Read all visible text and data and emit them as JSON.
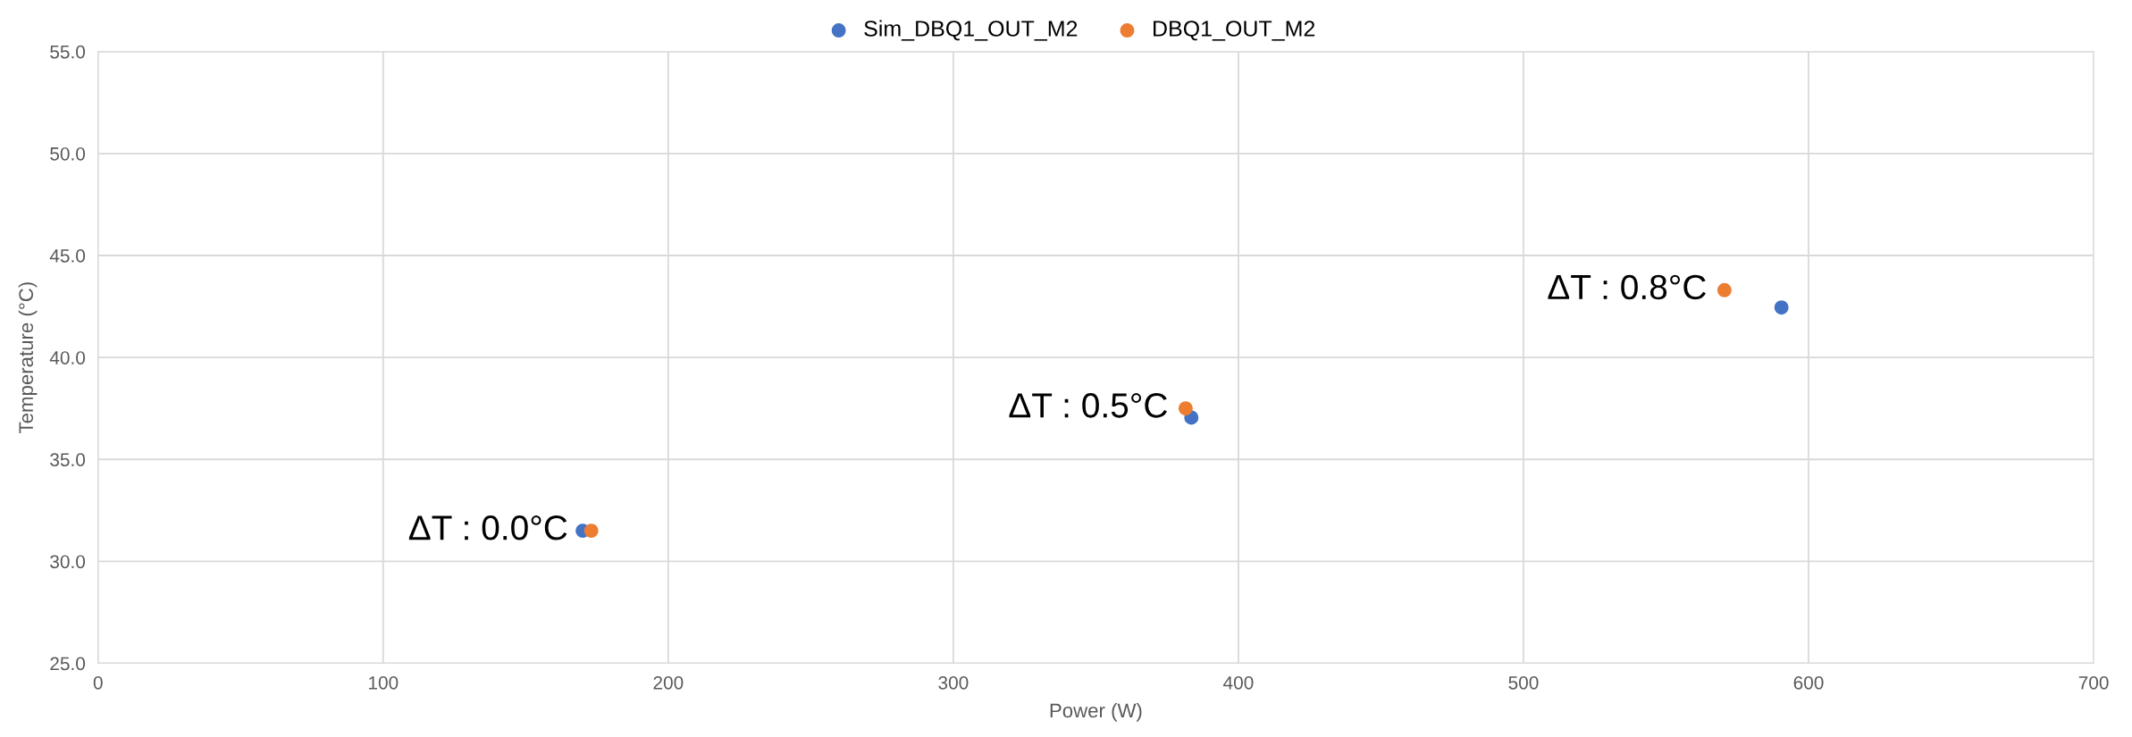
{
  "chart_data": {
    "type": "scatter",
    "xlabel": "Power (W)",
    "ylabel": "Temperature (°C)",
    "series": [
      {
        "name": "Sim_DBQ1_OUT_M2",
        "color": "#4472c4",
        "x": [
          170,
          383.5,
          590.5
        ],
        "values": [
          31.5,
          37.05,
          42.45
        ]
      },
      {
        "name": "DBQ1_OUT_M2",
        "color": "#ed7d31",
        "x": [
          173,
          381.5,
          570.5
        ],
        "values": [
          31.5,
          37.5,
          43.3
        ]
      }
    ],
    "xlim": [
      0,
      700
    ],
    "xticks": [
      0,
      100,
      200,
      300,
      400,
      500,
      600,
      700
    ],
    "ylim": [
      25,
      55
    ],
    "yticks": [
      {
        "value": 25,
        "label": "25.0"
      },
      {
        "value": 30,
        "label": "30.0"
      },
      {
        "value": 35,
        "label": "35.0"
      },
      {
        "value": 40,
        "label": "40.0"
      },
      {
        "value": 45,
        "label": "45.0"
      },
      {
        "value": 50,
        "label": "50.0"
      },
      {
        "value": 55,
        "label": "55.0"
      }
    ],
    "annotations": [
      {
        "text": "ΔT : 0.0°C",
        "x": 171,
        "y": 31.5
      },
      {
        "text": "ΔT : 0.5°C",
        "x": 381.5,
        "y": 37.5
      },
      {
        "text": "ΔT : 0.8°C",
        "x": 570.5,
        "y": 43.3
      }
    ],
    "grid": true,
    "legend": "top",
    "marker": "circle"
  }
}
